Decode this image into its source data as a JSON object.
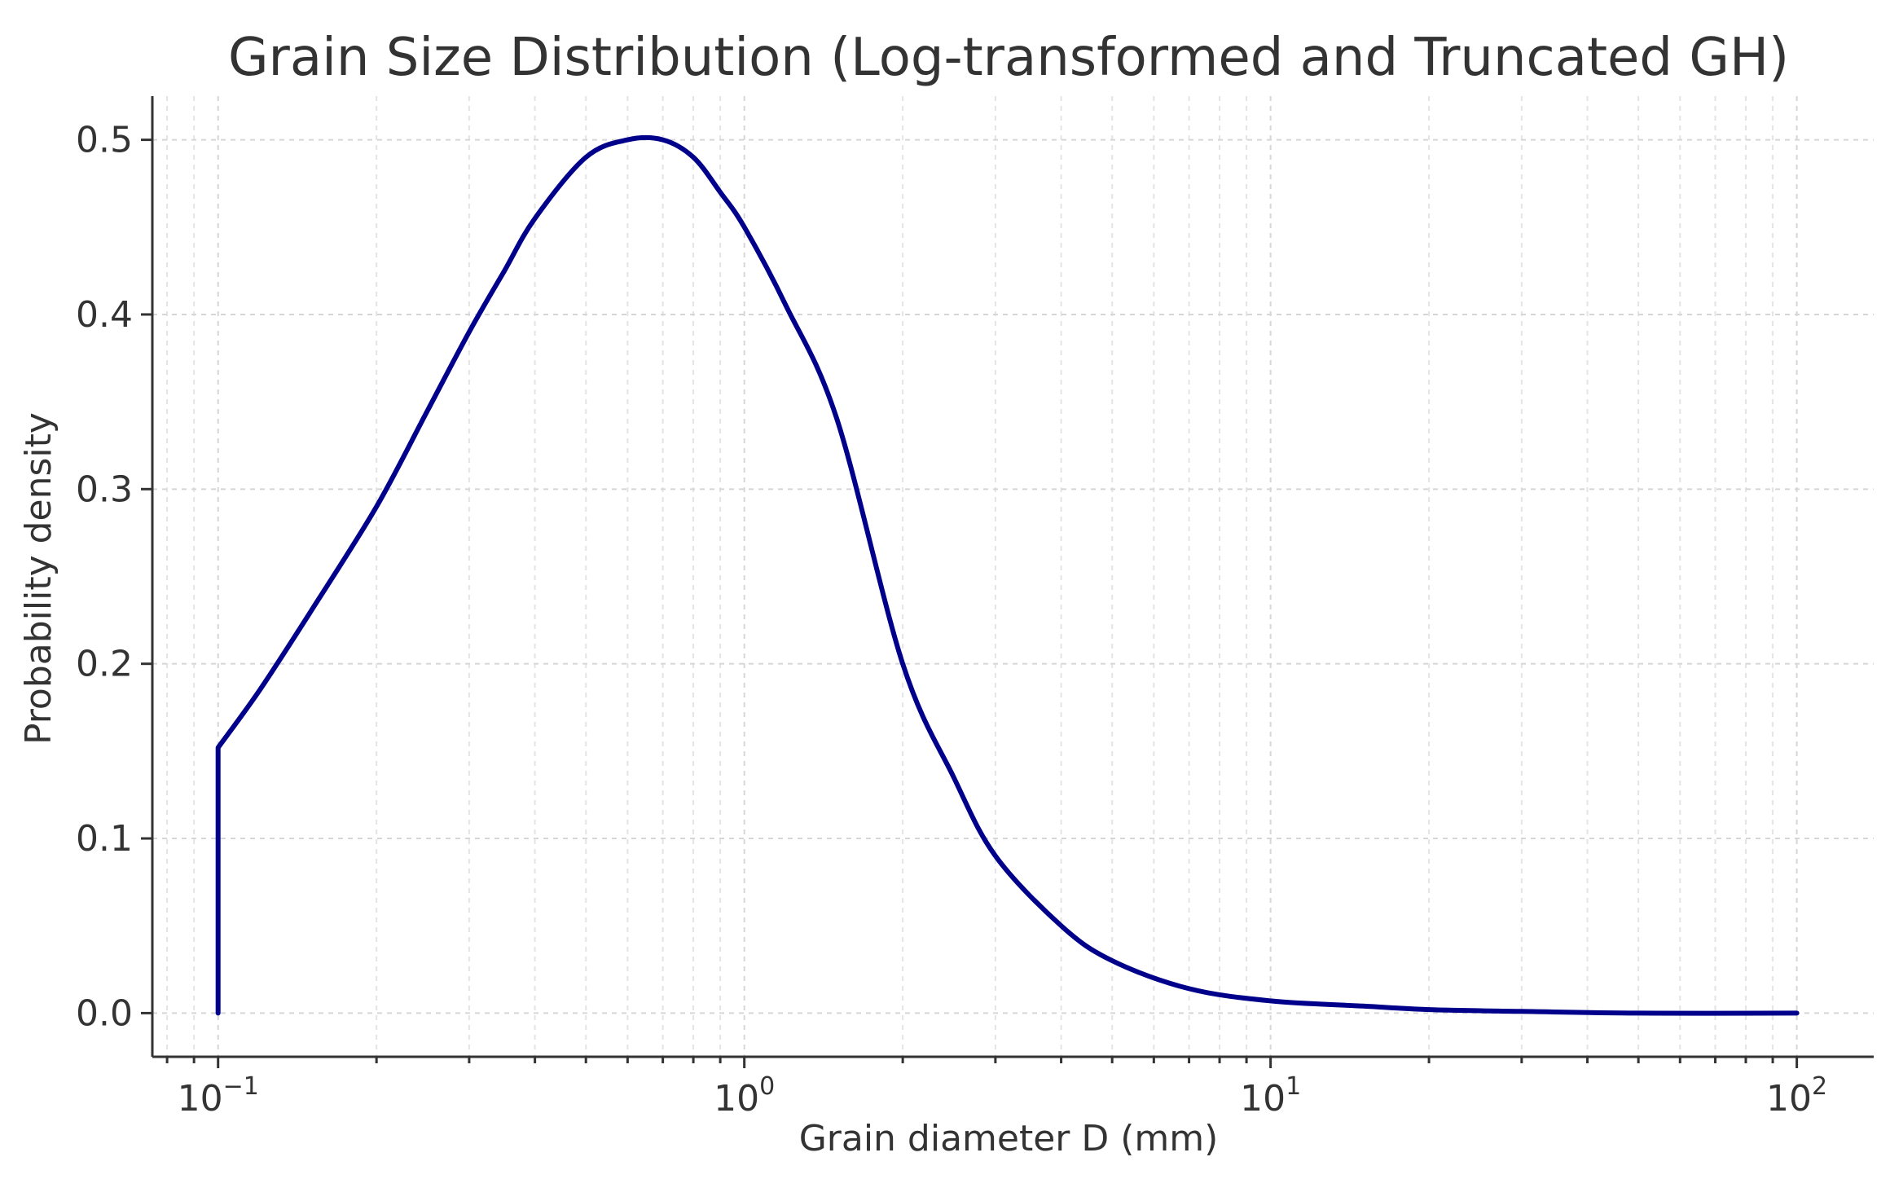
{
  "chart_data": {
    "type": "line",
    "title": "Grain Size Distribution (Log-transformed and Truncated GH)",
    "xlabel": "Grain diameter D (mm)",
    "ylabel": "Probability density",
    "xscale": "log",
    "xlim": [
      0.075,
      140
    ],
    "ylim": [
      -0.025,
      0.525
    ],
    "grid": true,
    "x_ticks": [
      {
        "base": "10",
        "exp": "−1",
        "value": 0.1
      },
      {
        "base": "10",
        "exp": "0",
        "value": 1
      },
      {
        "base": "10",
        "exp": "1",
        "value": 10
      },
      {
        "base": "10",
        "exp": "2",
        "value": 100
      }
    ],
    "y_ticks": [
      {
        "label": "0.0",
        "value": 0.0
      },
      {
        "label": "0.1",
        "value": 0.1
      },
      {
        "label": "0.2",
        "value": 0.2
      },
      {
        "label": "0.3",
        "value": 0.3
      },
      {
        "label": "0.4",
        "value": 0.4
      },
      {
        "label": "0.5",
        "value": 0.5
      }
    ],
    "series": [
      {
        "color": "#00008b",
        "points": [
          [
            0.1,
            0.0
          ],
          [
            0.1,
            0.152
          ],
          [
            0.12,
            0.185
          ],
          [
            0.15,
            0.23
          ],
          [
            0.2,
            0.29
          ],
          [
            0.25,
            0.345
          ],
          [
            0.3,
            0.39
          ],
          [
            0.35,
            0.425
          ],
          [
            0.4,
            0.455
          ],
          [
            0.5,
            0.49
          ],
          [
            0.6,
            0.5
          ],
          [
            0.7,
            0.5
          ],
          [
            0.8,
            0.49
          ],
          [
            0.9,
            0.47
          ],
          [
            1.0,
            0.45
          ],
          [
            1.2,
            0.405
          ],
          [
            1.5,
            0.34
          ],
          [
            2.0,
            0.2
          ],
          [
            2.5,
            0.135
          ],
          [
            3.0,
            0.09
          ],
          [
            4.0,
            0.05
          ],
          [
            5.0,
            0.03
          ],
          [
            7.0,
            0.014
          ],
          [
            10.0,
            0.007
          ],
          [
            15.0,
            0.004
          ],
          [
            20.0,
            0.002
          ],
          [
            30.0,
            0.001
          ],
          [
            50.0,
            0.0
          ],
          [
            100.0,
            0.0
          ]
        ]
      }
    ]
  }
}
